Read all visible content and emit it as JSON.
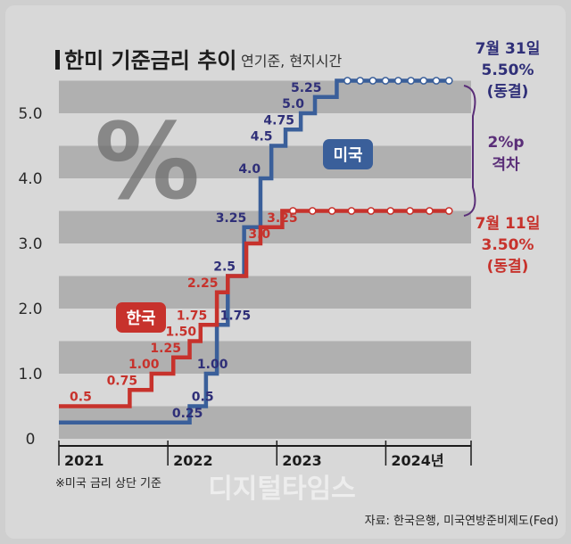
{
  "title": "한미 기준금리 추이",
  "subtitle": "연기준, 현지시간",
  "percent_glyph": "%",
  "footnote": "※미국 금리 상단 기준",
  "source": "자료: 한국은행, 미국연방준비제도(Fed)",
  "watermark": "디지털타임스",
  "colors": {
    "us": "#3a5f9a",
    "korea": "#c7322c",
    "us_text": "#2f2f78",
    "korea_text": "#c7322c",
    "gap_text": "#5a2e78",
    "band": "#8f8f8f"
  },
  "chart_data": {
    "type": "line",
    "title": "한미 기준금리 추이",
    "subtitle": "연기준, 현지시간",
    "yticks": [
      "0",
      "1.0",
      "2.0",
      "3.0",
      "4.0",
      "5.0"
    ],
    "ylim": [
      0,
      5.6
    ],
    "xticks": [
      "2021",
      "2022",
      "2023",
      "2024년"
    ],
    "x_range": [
      2021.0,
      2024.75
    ],
    "series": [
      {
        "name": "미국",
        "key": "us",
        "steps": [
          [
            2021.0,
            0.25
          ],
          [
            2022.2,
            0.5
          ],
          [
            2022.35,
            1.0
          ],
          [
            2022.45,
            1.75
          ],
          [
            2022.55,
            2.5
          ],
          [
            2022.7,
            3.25
          ],
          [
            2022.85,
            4.0
          ],
          [
            2022.95,
            4.5
          ],
          [
            2023.08,
            4.75
          ],
          [
            2023.22,
            5.0
          ],
          [
            2023.35,
            5.25
          ],
          [
            2023.55,
            5.5
          ]
        ],
        "end_x": 2024.58,
        "frozen_from": 2023.55,
        "labels": [
          {
            "text": "0.25",
            "x": 2022.18,
            "y": 0.25
          },
          {
            "text": "0.5",
            "x": 2022.32,
            "y": 0.5
          },
          {
            "text": "1.00",
            "x": 2022.41,
            "y": 1.0
          },
          {
            "text": "1.75",
            "x": 2022.62,
            "y": 1.75
          },
          {
            "text": "2.5",
            "x": 2022.52,
            "y": 2.5
          },
          {
            "text": "3.25",
            "x": 2022.58,
            "y": 3.25
          },
          {
            "text": "4.0",
            "x": 2022.75,
            "y": 4.0
          },
          {
            "text": "4.5",
            "x": 2022.86,
            "y": 4.5
          },
          {
            "text": "4.75",
            "x": 2023.02,
            "y": 4.75
          },
          {
            "text": "5.0",
            "x": 2023.15,
            "y": 5.0
          },
          {
            "text": "5.25",
            "x": 2023.27,
            "y": 5.25
          }
        ],
        "end_note": {
          "date": "7월 31일",
          "value": "5.50%",
          "status": "(동결)"
        }
      },
      {
        "name": "한국",
        "key": "korea",
        "steps": [
          [
            2021.0,
            0.5
          ],
          [
            2021.65,
            0.75
          ],
          [
            2021.85,
            1.0
          ],
          [
            2022.05,
            1.25
          ],
          [
            2022.2,
            1.5
          ],
          [
            2022.3,
            1.75
          ],
          [
            2022.45,
            2.25
          ],
          [
            2022.55,
            2.5
          ],
          [
            2022.72,
            3.0
          ],
          [
            2022.85,
            3.25
          ],
          [
            2023.05,
            3.5
          ]
        ],
        "end_x": 2024.58,
        "frozen_from": 2023.05,
        "labels": [
          {
            "text": "0.5",
            "x": 2021.2,
            "y": 0.5
          },
          {
            "text": "0.75",
            "x": 2021.58,
            "y": 0.75
          },
          {
            "text": "1.00",
            "x": 2021.78,
            "y": 1.0
          },
          {
            "text": "1.25",
            "x": 2021.98,
            "y": 1.25
          },
          {
            "text": "1.50",
            "x": 2022.12,
            "y": 1.5
          },
          {
            "text": "1.75",
            "x": 2022.22,
            "y": 1.75
          },
          {
            "text": "2.25",
            "x": 2022.32,
            "y": 2.25
          },
          {
            "text": "3.0",
            "x": 2022.84,
            "y": 3.0
          },
          {
            "text": "3.25",
            "x": 2023.05,
            "y": 3.25
          }
        ],
        "end_note": {
          "date": "7월 11일",
          "value": "3.50%",
          "status": "(동결)"
        }
      }
    ],
    "gap_label": [
      "2%p",
      "격차"
    ]
  }
}
